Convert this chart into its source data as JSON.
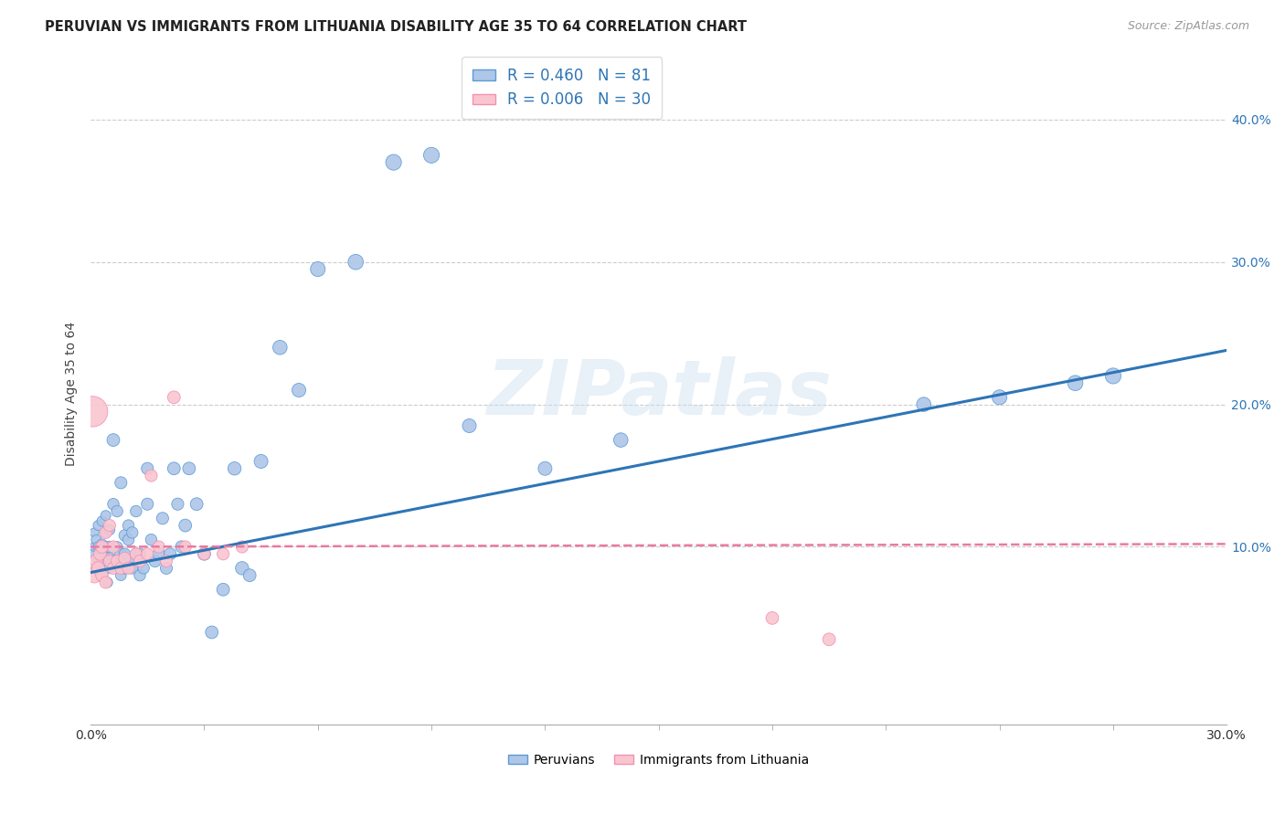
{
  "title": "PERUVIAN VS IMMIGRANTS FROM LITHUANIA DISABILITY AGE 35 TO 64 CORRELATION CHART",
  "source": "Source: ZipAtlas.com",
  "ylabel": "Disability Age 35 to 64",
  "y_ticks": [
    0.1,
    0.2,
    0.3,
    0.4
  ],
  "y_tick_labels": [
    "10.0%",
    "20.0%",
    "30.0%",
    "40.0%"
  ],
  "xlim": [
    0.0,
    0.3
  ],
  "ylim": [
    -0.025,
    0.44
  ],
  "peruvian_color": "#aec6e8",
  "peruvian_edge_color": "#5b9bd5",
  "peruvian_line_color": "#2e75b6",
  "lithuania_color": "#f9c6d0",
  "lithuania_edge_color": "#f48fb1",
  "lithuania_line_color": "#e97aa0",
  "legend_R_peru": "R = 0.460",
  "legend_N_peru": "N = 81",
  "legend_R_lith": "R = 0.006",
  "legend_N_lith": "N = 30",
  "watermark": "ZIPatlas",
  "peru_x": [
    0.0005,
    0.001,
    0.001,
    0.0015,
    0.0015,
    0.002,
    0.002,
    0.002,
    0.0025,
    0.0025,
    0.003,
    0.003,
    0.003,
    0.003,
    0.0035,
    0.0035,
    0.004,
    0.004,
    0.004,
    0.004,
    0.0045,
    0.005,
    0.005,
    0.005,
    0.005,
    0.006,
    0.006,
    0.006,
    0.007,
    0.007,
    0.007,
    0.008,
    0.008,
    0.008,
    0.009,
    0.009,
    0.009,
    0.01,
    0.01,
    0.01,
    0.011,
    0.011,
    0.012,
    0.012,
    0.013,
    0.013,
    0.014,
    0.015,
    0.015,
    0.016,
    0.017,
    0.018,
    0.019,
    0.02,
    0.021,
    0.022,
    0.023,
    0.024,
    0.025,
    0.026,
    0.028,
    0.03,
    0.032,
    0.035,
    0.038,
    0.04,
    0.042,
    0.045,
    0.05,
    0.055,
    0.06,
    0.07,
    0.08,
    0.09,
    0.1,
    0.12,
    0.14,
    0.22,
    0.24,
    0.26,
    0.27
  ],
  "peru_y": [
    0.095,
    0.1,
    0.11,
    0.085,
    0.105,
    0.09,
    0.1,
    0.115,
    0.088,
    0.098,
    0.08,
    0.092,
    0.102,
    0.118,
    0.086,
    0.095,
    0.088,
    0.1,
    0.11,
    0.122,
    0.075,
    0.092,
    0.1,
    0.112,
    0.085,
    0.175,
    0.09,
    0.13,
    0.088,
    0.1,
    0.125,
    0.08,
    0.095,
    0.145,
    0.085,
    0.108,
    0.095,
    0.09,
    0.105,
    0.115,
    0.085,
    0.11,
    0.095,
    0.125,
    0.08,
    0.095,
    0.085,
    0.13,
    0.155,
    0.105,
    0.09,
    0.095,
    0.12,
    0.085,
    0.095,
    0.155,
    0.13,
    0.1,
    0.115,
    0.155,
    0.13,
    0.095,
    0.04,
    0.07,
    0.155,
    0.085,
    0.08,
    0.16,
    0.24,
    0.21,
    0.295,
    0.3,
    0.37,
    0.375,
    0.185,
    0.155,
    0.175,
    0.2,
    0.205,
    0.215,
    0.22
  ],
  "peru_size": [
    30,
    30,
    30,
    35,
    35,
    35,
    35,
    35,
    35,
    35,
    40,
    40,
    35,
    35,
    40,
    40,
    40,
    40,
    35,
    35,
    35,
    45,
    45,
    40,
    40,
    55,
    45,
    45,
    45,
    40,
    45,
    40,
    50,
    50,
    45,
    45,
    45,
    50,
    45,
    45,
    45,
    45,
    45,
    45,
    45,
    45,
    45,
    50,
    50,
    45,
    50,
    50,
    50,
    50,
    50,
    55,
    50,
    50,
    55,
    55,
    55,
    55,
    55,
    55,
    60,
    60,
    55,
    65,
    70,
    65,
    75,
    80,
    85,
    85,
    65,
    65,
    70,
    70,
    75,
    80,
    85
  ],
  "lith_x": [
    0.0005,
    0.001,
    0.0015,
    0.002,
    0.0025,
    0.003,
    0.003,
    0.004,
    0.004,
    0.005,
    0.005,
    0.006,
    0.006,
    0.007,
    0.008,
    0.009,
    0.01,
    0.012,
    0.013,
    0.015,
    0.016,
    0.018,
    0.02,
    0.022,
    0.025,
    0.03,
    0.035,
    0.04,
    0.18,
    0.195
  ],
  "lith_y": [
    0.195,
    0.08,
    0.09,
    0.085,
    0.095,
    0.08,
    0.1,
    0.075,
    0.11,
    0.09,
    0.115,
    0.085,
    0.1,
    0.09,
    0.085,
    0.092,
    0.085,
    0.095,
    0.09,
    0.095,
    0.15,
    0.1,
    0.09,
    0.205,
    0.1,
    0.095,
    0.095,
    0.1,
    0.05,
    0.035
  ],
  "lith_size": [
    320,
    80,
    60,
    60,
    55,
    55,
    55,
    50,
    50,
    50,
    50,
    50,
    50,
    50,
    50,
    50,
    50,
    50,
    50,
    50,
    50,
    50,
    50,
    55,
    50,
    50,
    50,
    50,
    55,
    55
  ],
  "peru_line_x": [
    0.0,
    0.3
  ],
  "peru_line_y": [
    0.082,
    0.238
  ],
  "lith_line_x": [
    0.0,
    0.3
  ],
  "lith_line_y": [
    0.1,
    0.102
  ],
  "grid_color": "#cccccc",
  "background_color": "#ffffff",
  "title_color": "#222222",
  "ylabel_color": "#444444",
  "ytick_color": "#2e75b6"
}
